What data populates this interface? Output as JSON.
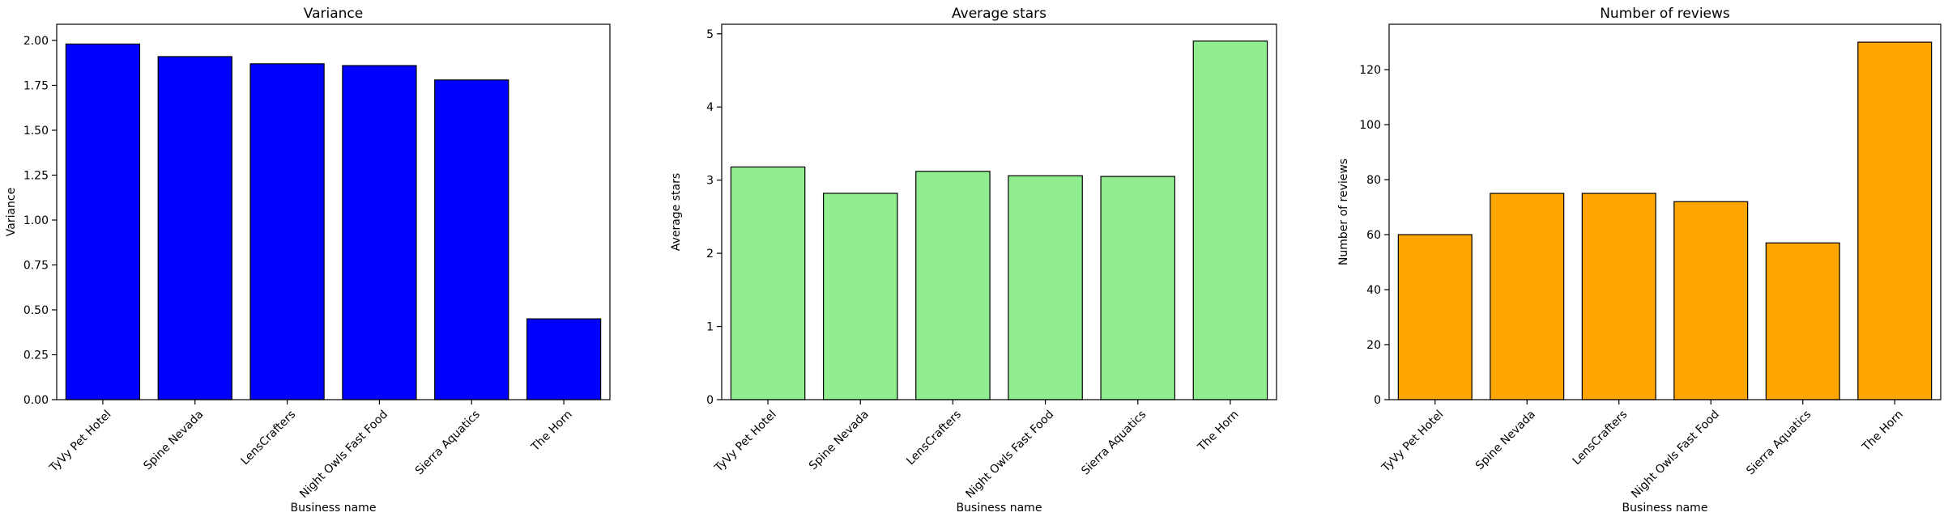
{
  "chart_data": [
    {
      "type": "bar",
      "title": "Variance",
      "xlabel": "Business name",
      "ylabel": "Variance",
      "categories": [
        "TyVy Pet Hotel",
        "Spine Nevada",
        "LensCrafters",
        "Night Owls Fast Food",
        "Sierra Aquatics",
        "The Horn"
      ],
      "values": [
        1.98,
        1.91,
        1.87,
        1.86,
        1.78,
        0.45
      ],
      "ylim": [
        0,
        2.09
      ],
      "yticks": [
        0,
        0.25,
        0.5,
        0.75,
        1.0,
        1.25,
        1.5,
        1.75,
        2.0
      ],
      "ytick_labels": [
        "0.00",
        "0.25",
        "0.50",
        "0.75",
        "1.00",
        "1.25",
        "1.50",
        "1.75",
        "2.00"
      ],
      "color": "#0000ff",
      "grid": false,
      "legend": "none"
    },
    {
      "type": "bar",
      "title": "Average stars",
      "xlabel": "Business name",
      "ylabel": "Average stars",
      "categories": [
        "TyVy Pet Hotel",
        "Spine Nevada",
        "LensCrafters",
        "Night Owls Fast Food",
        "Sierra Aquatics",
        "The Horn"
      ],
      "values": [
        3.18,
        2.82,
        3.12,
        3.06,
        3.05,
        4.9
      ],
      "ylim": [
        0,
        5.13
      ],
      "yticks": [
        0,
        1,
        2,
        3,
        4,
        5
      ],
      "ytick_labels": [
        "0",
        "1",
        "2",
        "3",
        "4",
        "5"
      ],
      "color": "#90ee90",
      "grid": false,
      "legend": "none"
    },
    {
      "type": "bar",
      "title": "Number of reviews",
      "xlabel": "Business name",
      "ylabel": "Number of reviews",
      "categories": [
        "TyVy Pet Hotel",
        "Spine Nevada",
        "LensCrafters",
        "Night Owls Fast Food",
        "Sierra Aquatics",
        "The Horn"
      ],
      "values": [
        60,
        75,
        75,
        72,
        57,
        130
      ],
      "ylim": [
        0,
        136.5
      ],
      "yticks": [
        0,
        20,
        40,
        60,
        80,
        100,
        120
      ],
      "ytick_labels": [
        "0",
        "20",
        "40",
        "60",
        "80",
        "100",
        "120"
      ],
      "color": "#ffa500",
      "grid": false,
      "legend": "none"
    }
  ]
}
